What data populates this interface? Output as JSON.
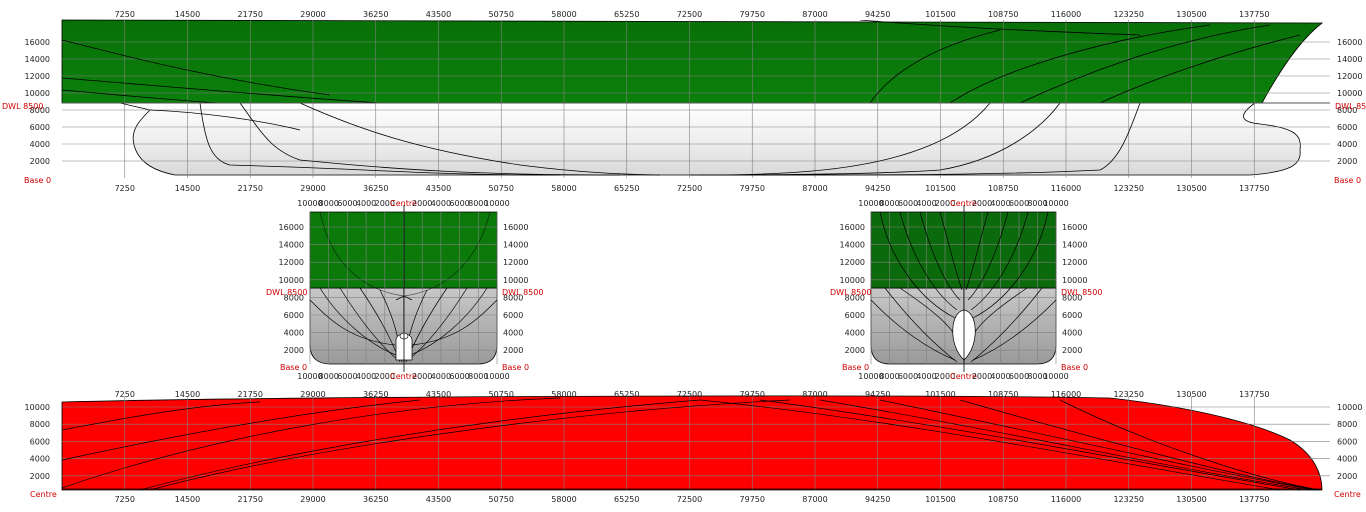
{
  "colors": {
    "above_waterline": "#0b7a0b",
    "below_waterline": "#f2f2f2",
    "body_plan_below": "#b8b8b8",
    "plan_view": "#ff0000",
    "grid": "#808080",
    "reference_label": "#d00000",
    "section_line": "#000000"
  },
  "profile_view": {
    "x_ticks": [
      "7250",
      "14500",
      "21750",
      "29000",
      "36250",
      "43500",
      "50750",
      "58000",
      "65250",
      "72500",
      "79750",
      "87000",
      "94250",
      "101500",
      "108750",
      "116000",
      "123250",
      "130500",
      "137750"
    ],
    "y_ticks": [
      "16000",
      "14000",
      "12000",
      "10000",
      "8000",
      "6000",
      "4000",
      "2000"
    ],
    "waterline_label": "DWL 8500",
    "base_label": "Base 0"
  },
  "body_plan_aft": {
    "half_breadth_ticks": [
      "10000",
      "8000",
      "6000",
      "4000",
      "2000",
      "Centre",
      "2000",
      "4000",
      "6000",
      "8000",
      "10000"
    ],
    "y_ticks": [
      "16000",
      "14000",
      "12000",
      "10000",
      "8000",
      "6000",
      "4000",
      "2000"
    ],
    "waterline_label": "DWL 8500",
    "base_label": "Base 0"
  },
  "body_plan_fore": {
    "half_breadth_ticks": [
      "10000",
      "8000",
      "6000",
      "4000",
      "2000",
      "Centre",
      "2000",
      "4000",
      "6000",
      "8000",
      "10000"
    ],
    "y_ticks": [
      "16000",
      "14000",
      "12000",
      "10000",
      "8000",
      "6000",
      "4000",
      "2000"
    ],
    "waterline_label": "DWL 8500",
    "base_label": "Base 0"
  },
  "plan_view": {
    "x_ticks": [
      "7250",
      "14500",
      "21750",
      "29000",
      "36250",
      "43500",
      "50750",
      "58000",
      "65250",
      "72500",
      "79750",
      "87000",
      "94250",
      "101500",
      "108750",
      "116000",
      "123250",
      "130500",
      "137750"
    ],
    "y_ticks": [
      "10000",
      "8000",
      "6000",
      "4000",
      "2000"
    ],
    "centre_label": "Centre"
  }
}
